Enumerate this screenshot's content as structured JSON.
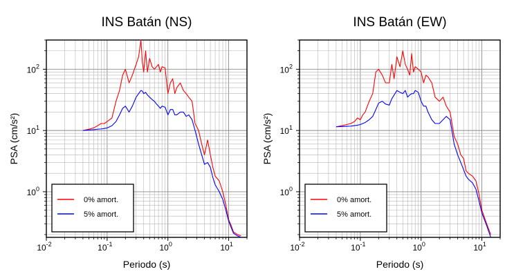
{
  "chart_data": [
    {
      "type": "line",
      "title": "INS Batán (NS)",
      "xlabel": "Periodo (s)",
      "ylabel": "PSA (cm/s²)",
      "xscale": "log",
      "yscale": "log",
      "xlim": [
        0.01,
        20
      ],
      "ylim": [
        0.18,
        300
      ],
      "x_ticks": [
        {
          "base": "10",
          "exp": "-2"
        },
        {
          "base": "10",
          "exp": "-1"
        },
        {
          "base": "10",
          "exp": "0"
        },
        {
          "base": "10",
          "exp": "1"
        }
      ],
      "y_ticks": [
        {
          "base": "10",
          "exp": "0"
        },
        {
          "base": "10",
          "exp": "1"
        },
        {
          "base": "10",
          "exp": "2"
        }
      ],
      "grid": true,
      "legend_position": "bottom-left",
      "series": [
        {
          "name": "0% amort.",
          "color": "#ff0000",
          "x": [
            0.04,
            0.05,
            0.06,
            0.07,
            0.08,
            0.09,
            0.1,
            0.11,
            0.12,
            0.14,
            0.16,
            0.18,
            0.2,
            0.23,
            0.26,
            0.3,
            0.33,
            0.36,
            0.38,
            0.4,
            0.43,
            0.46,
            0.5,
            0.55,
            0.6,
            0.65,
            0.7,
            0.75,
            0.8,
            0.9,
            1.0,
            1.1,
            1.2,
            1.3,
            1.4,
            1.6,
            1.8,
            2.0,
            2.2,
            2.5,
            2.8,
            3.2,
            3.6,
            4.0,
            4.5,
            5.0,
            5.5,
            6.0,
            7.0,
            8.0,
            9.0,
            10.0,
            11.0,
            12.0,
            14.0,
            16.0
          ],
          "y": [
            10,
            10.5,
            11,
            12,
            13,
            13,
            14,
            15,
            16,
            30,
            45,
            80,
            100,
            60,
            80,
            120,
            160,
            300,
            130,
            90,
            200,
            90,
            150,
            110,
            100,
            110,
            120,
            90,
            110,
            105,
            40,
            60,
            70,
            40,
            50,
            60,
            45,
            40,
            35,
            30,
            13,
            10,
            6,
            4,
            7,
            4,
            2.5,
            1.8,
            1.5,
            1.0,
            0.6,
            0.35,
            0.28,
            0.22,
            0.2,
            0.19
          ]
        },
        {
          "name": "5% amort.",
          "color": "#0000ff",
          "x": [
            0.04,
            0.05,
            0.06,
            0.07,
            0.08,
            0.09,
            0.1,
            0.11,
            0.12,
            0.14,
            0.16,
            0.18,
            0.2,
            0.23,
            0.26,
            0.3,
            0.33,
            0.36,
            0.38,
            0.4,
            0.43,
            0.46,
            0.5,
            0.55,
            0.6,
            0.65,
            0.7,
            0.75,
            0.8,
            0.9,
            1.0,
            1.1,
            1.2,
            1.3,
            1.4,
            1.6,
            1.8,
            2.0,
            2.2,
            2.5,
            2.8,
            3.2,
            3.6,
            4.0,
            4.5,
            5.0,
            5.5,
            6.0,
            7.0,
            8.0,
            9.0,
            10.0,
            11.0,
            12.0,
            14.0,
            16.0
          ],
          "y": [
            10,
            10.2,
            10.3,
            10.5,
            10.6,
            10.8,
            11,
            11.5,
            12,
            14,
            18,
            23,
            25,
            20,
            25,
            35,
            40,
            45,
            44,
            40,
            42,
            38,
            35,
            32,
            30,
            27,
            25,
            23,
            25,
            24,
            18,
            22,
            22,
            18,
            18,
            20,
            20,
            17,
            18,
            15,
            10,
            6,
            4,
            2.8,
            3.0,
            2.5,
            1.7,
            1.3,
            1.0,
            0.75,
            0.5,
            0.33,
            0.26,
            0.21,
            0.19,
            0.18
          ]
        }
      ]
    },
    {
      "type": "line",
      "title": "INS Batán (EW)",
      "xlabel": "Periodo (s)",
      "ylabel": "PSA (cm/s²)",
      "xscale": "log",
      "yscale": "log",
      "xlim": [
        0.01,
        20
      ],
      "ylim": [
        0.18,
        300
      ],
      "x_ticks": [
        {
          "base": "10",
          "exp": "-2"
        },
        {
          "base": "10",
          "exp": "-1"
        },
        {
          "base": "10",
          "exp": "0"
        },
        {
          "base": "10",
          "exp": "1"
        }
      ],
      "y_ticks": [
        {
          "base": "10",
          "exp": "0"
        },
        {
          "base": "10",
          "exp": "1"
        },
        {
          "base": "10",
          "exp": "2"
        }
      ],
      "grid": true,
      "legend_position": "bottom-left",
      "series": [
        {
          "name": "0% amort.",
          "color": "#ff0000",
          "x": [
            0.04,
            0.05,
            0.06,
            0.07,
            0.08,
            0.09,
            0.1,
            0.11,
            0.12,
            0.14,
            0.16,
            0.18,
            0.2,
            0.23,
            0.26,
            0.3,
            0.33,
            0.36,
            0.4,
            0.45,
            0.5,
            0.55,
            0.6,
            0.65,
            0.7,
            0.75,
            0.8,
            0.9,
            1.0,
            1.1,
            1.2,
            1.3,
            1.5,
            1.7,
            2.0,
            2.3,
            2.6,
            3.0,
            3.5,
            4.0,
            4.5,
            5.0,
            5.5,
            6.0,
            7.0,
            8.0,
            9.0,
            10.0,
            12.0,
            14.0
          ],
          "y": [
            11.5,
            12,
            12.5,
            13,
            14,
            16,
            15,
            18,
            20,
            30,
            40,
            90,
            100,
            80,
            60,
            60,
            120,
            70,
            160,
            110,
            200,
            120,
            100,
            80,
            180,
            90,
            110,
            100,
            90,
            60,
            80,
            75,
            60,
            35,
            30,
            35,
            25,
            20,
            8,
            6,
            4,
            3.5,
            2.2,
            2.0,
            1.8,
            1.5,
            0.9,
            0.5,
            0.3,
            0.2
          ]
        },
        {
          "name": "5% amort.",
          "color": "#0000ff",
          "x": [
            0.04,
            0.05,
            0.06,
            0.07,
            0.08,
            0.09,
            0.1,
            0.11,
            0.12,
            0.14,
            0.16,
            0.18,
            0.2,
            0.23,
            0.26,
            0.3,
            0.33,
            0.36,
            0.4,
            0.45,
            0.5,
            0.55,
            0.6,
            0.65,
            0.7,
            0.75,
            0.8,
            0.9,
            1.0,
            1.1,
            1.2,
            1.3,
            1.5,
            1.7,
            2.0,
            2.3,
            2.6,
            3.0,
            3.5,
            4.0,
            4.5,
            5.0,
            5.5,
            6.0,
            7.0,
            8.0,
            9.0,
            10.0,
            12.0,
            14.0
          ],
          "y": [
            11.5,
            11.6,
            11.7,
            11.8,
            12,
            12.2,
            12.5,
            13,
            13.5,
            15,
            17,
            22,
            28,
            30,
            27,
            26,
            33,
            38,
            45,
            42,
            40,
            45,
            35,
            38,
            40,
            40,
            45,
            42,
            30,
            25,
            25,
            20,
            15,
            13,
            13,
            15,
            17,
            15,
            6,
            4,
            3,
            2.3,
            1.8,
            1.6,
            1.4,
            1.1,
            0.7,
            0.45,
            0.28,
            0.18
          ]
        }
      ]
    }
  ]
}
